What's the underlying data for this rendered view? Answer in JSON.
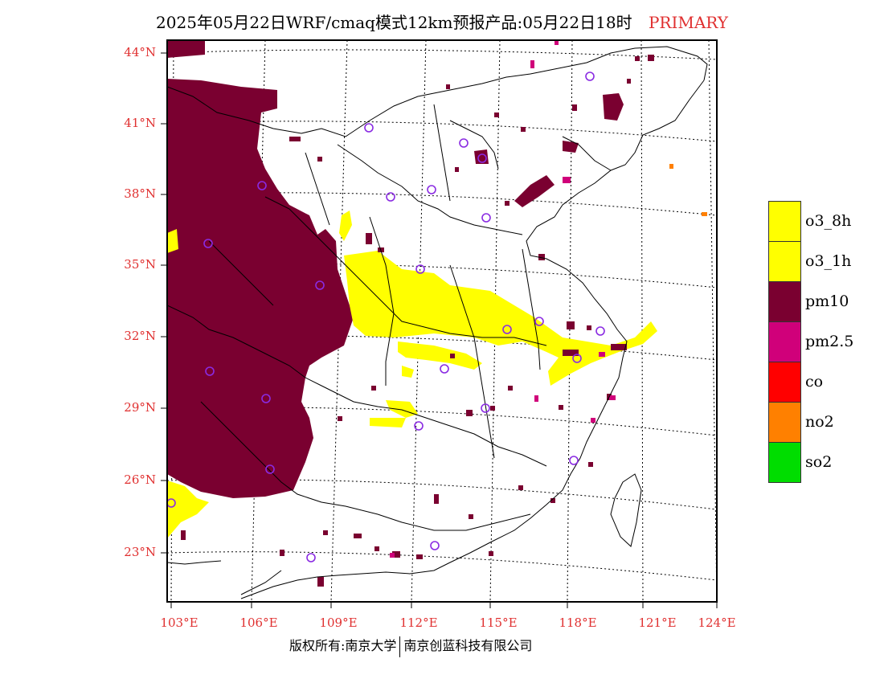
{
  "title": {
    "main": "2025年05月22日WRF/cmaq模式12km预报产品:05月22日18时",
    "tag": "PRIMARY"
  },
  "axes": {
    "lat_labels": [
      "44°N",
      "41°N",
      "38°N",
      "35°N",
      "32°N",
      "29°N",
      "26°N",
      "23°N"
    ],
    "lon_labels": [
      "103°E",
      "106°E",
      "109°E",
      "112°E",
      "115°E",
      "118°E",
      "121°E",
      "124°E"
    ]
  },
  "legend": {
    "items": [
      {
        "label": "o3_8h",
        "color": "#ffff00"
      },
      {
        "label": "o3_1h",
        "color": "#ffff00"
      },
      {
        "label": "pm10",
        "color": "#7a0030"
      },
      {
        "label": "pm2.5",
        "color": "#d0007a"
      },
      {
        "label": "co",
        "color": "#ff0000"
      },
      {
        "label": "no2",
        "color": "#ff8000"
      },
      {
        "label": "so2",
        "color": "#00dd00"
      }
    ]
  },
  "credit": {
    "left": "版权所有:南京大学",
    "right": "南京创蓝科技有限公司"
  },
  "colors": {
    "accent_text": "#e03030",
    "station_marker": "#8a2be2"
  }
}
